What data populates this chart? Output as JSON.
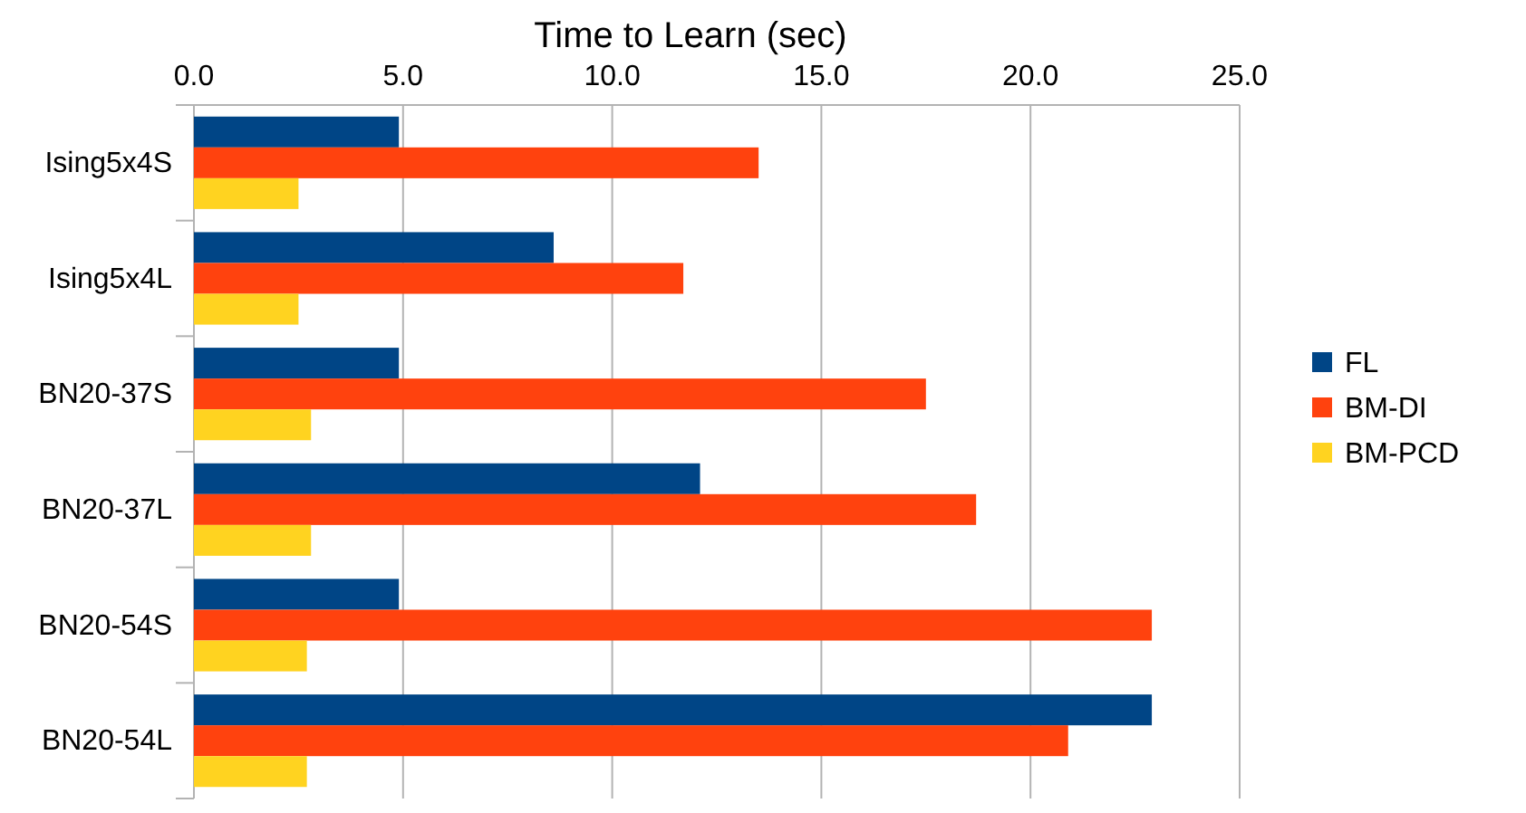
{
  "chart_data": {
    "type": "bar",
    "orientation": "horizontal",
    "title": "Time to Learn (sec)",
    "categories": [
      "Ising5x4S",
      "Ising5x4L",
      "BN20-37S",
      "BN20-37L",
      "BN20-54S",
      "BN20-54L"
    ],
    "series": [
      {
        "name": "FL",
        "color": "#004586",
        "values": [
          4.9,
          8.6,
          4.9,
          12.1,
          4.9,
          22.9
        ]
      },
      {
        "name": "BM-DI",
        "color": "#ff420e",
        "values": [
          13.5,
          11.7,
          17.5,
          18.7,
          22.9,
          20.9
        ]
      },
      {
        "name": "BM-PCD",
        "color": "#ffd320",
        "values": [
          2.5,
          2.5,
          2.8,
          2.8,
          2.7,
          2.7
        ]
      }
    ],
    "xlim": [
      0,
      25
    ],
    "xticks": [
      {
        "value": 0,
        "label": "0.0"
      },
      {
        "value": 5,
        "label": "5.0"
      },
      {
        "value": 10,
        "label": "10.0"
      },
      {
        "value": 15,
        "label": "15.0"
      },
      {
        "value": 20,
        "label": "20.0"
      },
      {
        "value": 25,
        "label": "25.0"
      }
    ],
    "grid": "x",
    "legend": "right"
  }
}
